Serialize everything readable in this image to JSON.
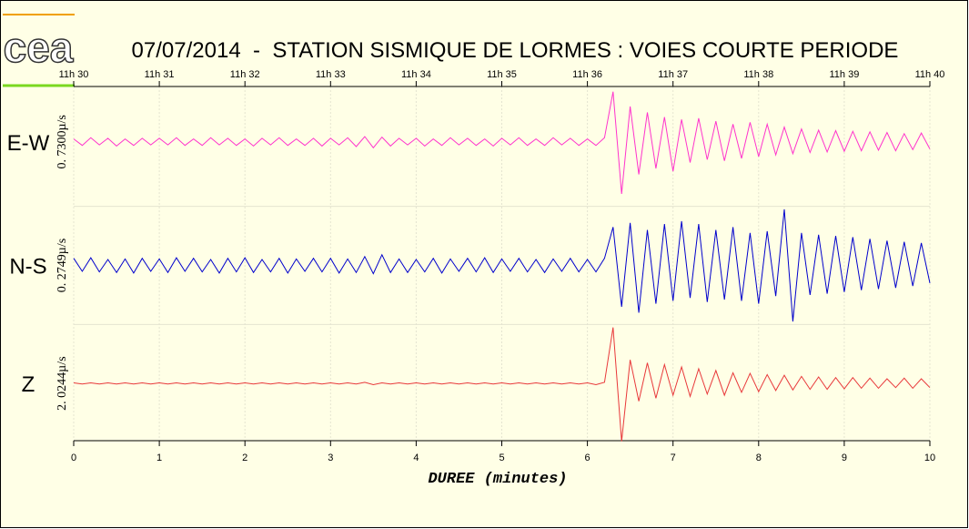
{
  "chart_data": {
    "type": "seismogram",
    "logo": "cea",
    "title": "07/07/2014  -  STATION SISMIQUE DE LORMES : VOIES COURTE PERIODE",
    "xlabel": "DUREE (minutes)",
    "xlim": [
      0,
      10
    ],
    "xticks": [
      0,
      1,
      2,
      3,
      4,
      5,
      6,
      7,
      8,
      9,
      10
    ],
    "top_labels": [
      "11h 30",
      "11h 31",
      "11h 32",
      "11h 33",
      "11h 34",
      "11h 35",
      "11h 36",
      "11h 37",
      "11h 38",
      "11h 39",
      "11h 40"
    ],
    "ylim": [
      -1,
      1
    ],
    "grid": true,
    "x": [
      0,
      0.1,
      0.2,
      0.3,
      0.4,
      0.5,
      0.6,
      0.7,
      0.8,
      0.9,
      1,
      1.1,
      1.2,
      1.3,
      1.4,
      1.5,
      1.6,
      1.7,
      1.8,
      1.9,
      2,
      2.1,
      2.2,
      2.3,
      2.4,
      2.5,
      2.6,
      2.7,
      2.8,
      2.9,
      3,
      3.1,
      3.2,
      3.3,
      3.4,
      3.5,
      3.6,
      3.7,
      3.8,
      3.9,
      4,
      4.1,
      4.2,
      4.3,
      4.4,
      4.5,
      4.6,
      4.7,
      4.8,
      4.9,
      5,
      5.1,
      5.2,
      5.3,
      5.4,
      5.5,
      5.6,
      5.7,
      5.8,
      5.9,
      6,
      6.1,
      6.2,
      6.3,
      6.4,
      6.5,
      6.6,
      6.7,
      6.8,
      6.9,
      7,
      7.1,
      7.2,
      7.3,
      7.4,
      7.5,
      7.6,
      7.7,
      7.8,
      7.9,
      8,
      8.1,
      8.2,
      8.3,
      8.4,
      8.5,
      8.6,
      8.7,
      8.8,
      8.9,
      9,
      9.1,
      9.2,
      9.3,
      9.4,
      9.5,
      9.6,
      9.7,
      9.8,
      9.9,
      10
    ],
    "series": [
      {
        "name": "E-W",
        "scale_label": "0. 7300µ/s",
        "color": "#ff33cc",
        "values": [
          0.05,
          -0.06,
          0.07,
          -0.05,
          0.06,
          -0.07,
          0.05,
          -0.06,
          0.06,
          -0.05,
          0.06,
          -0.05,
          0.07,
          -0.06,
          0.05,
          -0.06,
          0.07,
          -0.05,
          0.06,
          -0.06,
          0.05,
          -0.07,
          0.06,
          -0.05,
          0.07,
          -0.06,
          0.05,
          -0.06,
          0.06,
          -0.07,
          0.06,
          -0.05,
          0.07,
          -0.08,
          0.09,
          -0.1,
          0.08,
          -0.07,
          0.06,
          -0.05,
          0.06,
          -0.07,
          0.05,
          -0.06,
          0.07,
          -0.05,
          0.06,
          -0.06,
          0.05,
          -0.07,
          0.06,
          -0.05,
          0.07,
          -0.06,
          0.05,
          -0.06,
          0.07,
          -0.05,
          0.06,
          -0.06,
          0.05,
          -0.06,
          0.07,
          0.85,
          -0.88,
          0.6,
          -0.55,
          0.5,
          -0.45,
          0.42,
          -0.5,
          0.38,
          -0.35,
          0.4,
          -0.3,
          0.35,
          -0.32,
          0.3,
          -0.28,
          0.33,
          -0.25,
          0.3,
          -0.22,
          0.25,
          -0.2,
          0.22,
          -0.18,
          0.2,
          -0.17,
          0.19,
          -0.16,
          0.18,
          -0.15,
          0.17,
          -0.14,
          0.16,
          -0.15,
          0.14,
          -0.13,
          0.15,
          -0.12
        ]
      },
      {
        "name": "N-S",
        "scale_label": "0. 2749µ/s",
        "color": "#0000cc",
        "values": [
          0.12,
          -0.1,
          0.13,
          -0.11,
          0.1,
          -0.12,
          0.11,
          -0.13,
          0.12,
          -0.1,
          0.11,
          -0.12,
          0.13,
          -0.1,
          0.12,
          -0.11,
          0.1,
          -0.13,
          0.12,
          -0.11,
          0.13,
          -0.12,
          0.1,
          -0.11,
          0.12,
          -0.13,
          0.11,
          -0.1,
          0.12,
          -0.11,
          0.12,
          -0.13,
          0.11,
          -0.12,
          0.15,
          -0.14,
          0.18,
          -0.12,
          0.11,
          -0.12,
          0.1,
          -0.11,
          0.12,
          -0.13,
          0.11,
          -0.1,
          0.12,
          -0.11,
          0.13,
          -0.12,
          0.11,
          -0.1,
          0.12,
          -0.11,
          0.1,
          -0.12,
          0.11,
          -0.1,
          0.12,
          -0.11,
          0.1,
          -0.11,
          0.12,
          0.65,
          -0.7,
          0.72,
          -0.8,
          0.6,
          -0.65,
          0.7,
          -0.6,
          0.75,
          -0.55,
          0.7,
          -0.62,
          0.6,
          -0.58,
          0.65,
          -0.6,
          0.55,
          -0.65,
          0.58,
          -0.52,
          0.95,
          -0.95,
          0.55,
          -0.5,
          0.52,
          -0.48,
          0.5,
          -0.45,
          0.48,
          -0.42,
          0.45,
          -0.4,
          0.42,
          -0.38,
          0.4,
          -0.35,
          0.38,
          -0.3
        ]
      },
      {
        "name": "Z",
        "scale_label": "2. 0244µ/s",
        "color": "#e8383a",
        "values": [
          0.01,
          -0.01,
          0.01,
          -0.01,
          0.01,
          -0.01,
          0.01,
          -0.01,
          0.01,
          -0.01,
          0.01,
          -0.01,
          0.01,
          -0.01,
          0.01,
          -0.01,
          0.01,
          -0.01,
          0.01,
          -0.01,
          0.01,
          -0.01,
          0.01,
          -0.01,
          0.01,
          -0.01,
          0.01,
          -0.01,
          0.01,
          -0.01,
          0.01,
          -0.01,
          0.01,
          -0.01,
          0.02,
          -0.02,
          0.01,
          -0.01,
          0.01,
          -0.01,
          0.01,
          -0.01,
          0.01,
          -0.01,
          0.01,
          -0.01,
          0.01,
          -0.01,
          0.01,
          -0.01,
          0.01,
          -0.01,
          0.01,
          -0.01,
          0.01,
          -0.01,
          0.01,
          -0.01,
          0.01,
          -0.01,
          0.01,
          -0.02,
          0.02,
          0.95,
          -0.98,
          0.4,
          -0.3,
          0.35,
          -0.25,
          0.32,
          -0.2,
          0.28,
          -0.22,
          0.25,
          -0.18,
          0.22,
          -0.2,
          0.18,
          -0.15,
          0.17,
          -0.14,
          0.15,
          -0.12,
          0.14,
          -0.11,
          0.12,
          -0.1,
          0.11,
          -0.1,
          0.1,
          -0.09,
          0.1,
          -0.08,
          0.09,
          -0.08,
          0.08,
          -0.07,
          0.09,
          -0.08,
          0.08,
          -0.07
        ]
      }
    ]
  }
}
